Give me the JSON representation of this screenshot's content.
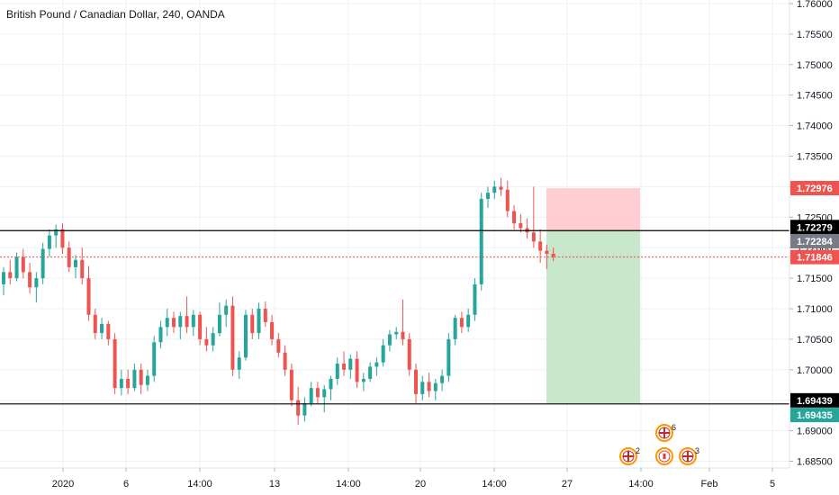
{
  "header": {
    "title": "British Pound / Canadian Dollar, 240, OANDA"
  },
  "colors": {
    "up": "#26a69a",
    "down": "#ef5350",
    "sr_line": "#000000",
    "current_line": "#ef5350",
    "stop_zone": "#ffcdd2",
    "target_zone": "#c8e6c9"
  },
  "chart_data": {
    "type": "candlestick",
    "title": "British Pound / Canadian Dollar, 240, OANDA",
    "ylim": [
      1.681,
      1.762
    ],
    "y_ticks": [
      "1.76000",
      "1.75500",
      "1.75000",
      "1.74500",
      "1.74000",
      "1.73500",
      "1.73000",
      "1.72500",
      "1.72000",
      "1.71500",
      "1.71000",
      "1.70500",
      "1.70000",
      "1.69500",
      "1.69000",
      "1.68500"
    ],
    "x_ticks": [
      "2020",
      "6",
      "14:00",
      "13",
      "14:00",
      "20",
      "14:00",
      "27",
      "14:00",
      "Feb",
      "5"
    ],
    "horizontal_lines": [
      {
        "name": "resistance",
        "value": 1.72279,
        "label": "1.72279"
      },
      {
        "name": "support",
        "value": 1.69439,
        "label": "1.69439"
      }
    ],
    "current_price": {
      "value": 1.71846,
      "label": "1.71846"
    },
    "price_tags": [
      {
        "name": "stop-tag",
        "label": "1.72976",
        "color": "#ef5350"
      },
      {
        "name": "resistance-tag",
        "label": "1.72279",
        "color": "#000000"
      },
      {
        "name": "entry-tag",
        "label": "1.72284",
        "color": "#787b86"
      },
      {
        "name": "current-tag",
        "label": "1.71846",
        "color": "#ef5350"
      },
      {
        "name": "support-tag",
        "label": "1.69439",
        "color": "#000000"
      },
      {
        "name": "target-tag",
        "label": "1.69435",
        "color": "#26a69a"
      }
    ],
    "position": {
      "side": "short",
      "entry": 1.72284,
      "stop": 1.72976,
      "target": 1.69435
    },
    "events": [
      {
        "name": "event-gb",
        "count": "2"
      },
      {
        "name": "event-gb",
        "count": "6"
      },
      {
        "name": "event-ca",
        "count": ""
      },
      {
        "name": "event-gb",
        "count": "3"
      }
    ],
    "candles": [
      [
        1.714,
        1.7168,
        1.7122,
        1.716
      ],
      [
        1.716,
        1.718,
        1.714,
        1.715
      ],
      [
        1.715,
        1.7192,
        1.7145,
        1.7185
      ],
      [
        1.7185,
        1.7198,
        1.715,
        1.716
      ],
      [
        1.716,
        1.7175,
        1.7125,
        1.7135
      ],
      [
        1.7135,
        1.716,
        1.711,
        1.715
      ],
      [
        1.715,
        1.7208,
        1.714,
        1.7198
      ],
      [
        1.7198,
        1.723,
        1.7185,
        1.722
      ],
      [
        1.722,
        1.7238,
        1.72,
        1.723
      ],
      [
        1.723,
        1.724,
        1.719,
        1.72
      ],
      [
        1.72,
        1.721,
        1.716,
        1.7168
      ],
      [
        1.7168,
        1.7188,
        1.715,
        1.718
      ],
      [
        1.718,
        1.72,
        1.714,
        1.715
      ],
      [
        1.715,
        1.717,
        1.708,
        1.709
      ],
      [
        1.709,
        1.71,
        1.705,
        1.706
      ],
      [
        1.706,
        1.7085,
        1.705,
        1.7075
      ],
      [
        1.7075,
        1.708,
        1.704,
        1.705
      ],
      [
        1.705,
        1.706,
        1.696,
        1.697
      ],
      [
        1.697,
        1.7,
        1.6958,
        1.6985
      ],
      [
        1.6985,
        1.7,
        1.696,
        1.697
      ],
      [
        1.697,
        1.701,
        1.6965,
        1.7
      ],
      [
        1.7,
        1.701,
        1.696,
        1.6975
      ],
      [
        1.6975,
        1.7,
        1.6965,
        1.699
      ],
      [
        1.699,
        1.7055,
        1.698,
        1.7045
      ],
      [
        1.7045,
        1.708,
        1.7035,
        1.707
      ],
      [
        1.707,
        1.71,
        1.7055,
        1.7085
      ],
      [
        1.7085,
        1.7095,
        1.706,
        1.707
      ],
      [
        1.707,
        1.7095,
        1.705,
        1.7088
      ],
      [
        1.7088,
        1.712,
        1.706,
        1.707
      ],
      [
        1.707,
        1.7098,
        1.7055,
        1.709
      ],
      [
        1.709,
        1.7095,
        1.704,
        1.705
      ],
      [
        1.705,
        1.707,
        1.703,
        1.704
      ],
      [
        1.704,
        1.707,
        1.703,
        1.706
      ],
      [
        1.706,
        1.711,
        1.7055,
        1.709
      ],
      [
        1.709,
        1.7115,
        1.707,
        1.7105
      ],
      [
        1.7105,
        1.712,
        1.699,
        1.7
      ],
      [
        1.7,
        1.703,
        1.6985,
        1.702
      ],
      [
        1.702,
        1.7098,
        1.7015,
        1.709
      ],
      [
        1.709,
        1.71,
        1.705,
        1.706
      ],
      [
        1.706,
        1.711,
        1.705,
        1.71
      ],
      [
        1.71,
        1.7112,
        1.707,
        1.7078
      ],
      [
        1.7078,
        1.709,
        1.704,
        1.705
      ],
      [
        1.705,
        1.706,
        1.702,
        1.7028
      ],
      [
        1.7028,
        1.704,
        1.699,
        1.7
      ],
      [
        1.7,
        1.701,
        1.694,
        1.695
      ],
      [
        1.695,
        1.6972,
        1.691,
        1.6925
      ],
      [
        1.6925,
        1.6955,
        1.6915,
        1.6945
      ],
      [
        1.6945,
        1.698,
        1.694,
        1.697
      ],
      [
        1.697,
        1.698,
        1.6945,
        1.6955
      ],
      [
        1.6955,
        1.6975,
        1.693,
        1.6968
      ],
      [
        1.6968,
        1.699,
        1.695,
        1.6985
      ],
      [
        1.6985,
        1.702,
        1.6975,
        1.701
      ],
      [
        1.701,
        1.703,
        1.699,
        1.7
      ],
      [
        1.7,
        1.7025,
        1.6985,
        1.7018
      ],
      [
        1.7018,
        1.703,
        1.697,
        1.698
      ],
      [
        1.698,
        1.6995,
        1.6965,
        1.6985
      ],
      [
        1.6985,
        1.7012,
        1.698,
        1.7005
      ],
      [
        1.7005,
        1.702,
        1.699,
        1.7012
      ],
      [
        1.7012,
        1.705,
        1.7005,
        1.704
      ],
      [
        1.704,
        1.7065,
        1.703,
        1.7058
      ],
      [
        1.7058,
        1.707,
        1.705,
        1.7062
      ],
      [
        1.7062,
        1.7115,
        1.704,
        1.705
      ],
      [
        1.705,
        1.706,
        1.699,
        1.7
      ],
      [
        1.7,
        1.701,
        1.6945,
        1.696
      ],
      [
        1.696,
        1.699,
        1.695,
        1.698
      ],
      [
        1.698,
        1.6995,
        1.6955,
        1.6965
      ],
      [
        1.6965,
        1.6985,
        1.695,
        1.6978
      ],
      [
        1.6978,
        1.7,
        1.6965,
        1.699
      ],
      [
        1.699,
        1.706,
        1.698,
        1.705
      ],
      [
        1.705,
        1.709,
        1.704,
        1.7085
      ],
      [
        1.7085,
        1.7095,
        1.706,
        1.707
      ],
      [
        1.707,
        1.71,
        1.7062,
        1.709
      ],
      [
        1.709,
        1.715,
        1.708,
        1.714
      ],
      [
        1.714,
        1.729,
        1.713,
        1.728
      ],
      [
        1.728,
        1.73,
        1.7265,
        1.729
      ],
      [
        1.729,
        1.731,
        1.728,
        1.73
      ],
      [
        1.73,
        1.7315,
        1.7285,
        1.7295
      ],
      [
        1.7295,
        1.731,
        1.725,
        1.726
      ],
      [
        1.726,
        1.727,
        1.723,
        1.724
      ],
      [
        1.724,
        1.7255,
        1.7225,
        1.7232
      ],
      [
        1.7232,
        1.7248,
        1.7215,
        1.7225
      ],
      [
        1.7225,
        1.73,
        1.72,
        1.721
      ],
      [
        1.721,
        1.723,
        1.7175,
        1.7195
      ],
      [
        1.7195,
        1.7205,
        1.7165,
        1.719
      ],
      [
        1.719,
        1.72,
        1.7178,
        1.7185
      ]
    ]
  }
}
